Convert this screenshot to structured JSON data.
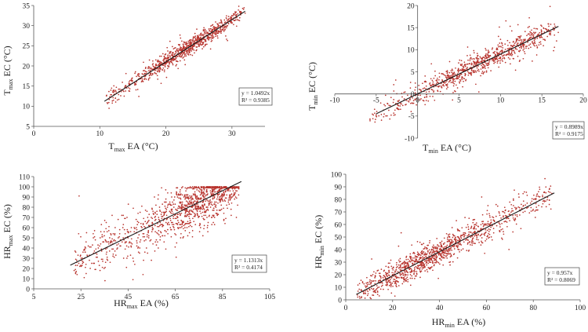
{
  "colors": {
    "point": "#b8342e",
    "line": "#1a1a1a",
    "axis": "#555555",
    "box": "#444444"
  },
  "chart_data": [
    {
      "id": "tmax",
      "type": "scatter",
      "xlabel": {
        "main": "T",
        "sub": "max",
        "rest": " EA (°C)"
      },
      "ylabel": {
        "main": "T",
        "sub": "max",
        "rest": " EC (°C)"
      },
      "xlim": [
        0,
        35
      ],
      "ylim": [
        5,
        35
      ],
      "xticks": [
        "0",
        "10",
        "20",
        "30"
      ],
      "xtick_values": [
        0,
        10,
        20,
        30
      ],
      "yticks": [
        "5",
        "10",
        "15",
        "20",
        "25",
        "30",
        "35"
      ],
      "ytick_values": [
        5,
        10,
        15,
        20,
        25,
        30,
        35
      ],
      "fit": {
        "slope": 1.0492,
        "r2": 0.9385,
        "x_range": [
          10.7,
          32
        ]
      },
      "equation": "y = 1.0492x",
      "r2_text": "R² = 0.9385",
      "cloud": {
        "x_range": [
          11,
          32
        ],
        "x_center": 24,
        "x_spread": 4,
        "noise": 1.0,
        "n": 900,
        "outlier_frac": 0.05
      }
    },
    {
      "id": "tmin",
      "type": "scatter",
      "xlabel": {
        "main": "T",
        "sub": "min",
        "rest": " EA (°C)"
      },
      "ylabel": {
        "main": "T",
        "sub": "min",
        "rest": " EC (°C)"
      },
      "xlim": [
        -10,
        20
      ],
      "ylim": [
        -10,
        20
      ],
      "xticks": [
        "-10",
        "-5",
        "0",
        "5",
        "10",
        "15",
        "20"
      ],
      "xtick_values": [
        -10,
        -5,
        0,
        5,
        10,
        15,
        20
      ],
      "yticks": [
        "-10",
        "-5",
        "0",
        "5",
        "10",
        "15",
        "20"
      ],
      "ytick_values": [
        -10,
        -5,
        0,
        5,
        10,
        15,
        20
      ],
      "fit": {
        "slope": 0.8989,
        "r2": 0.9175,
        "x_range": [
          -5,
          17
        ]
      },
      "equation": "y = 0.8989x",
      "r2_text": "R² = 0.9175",
      "cloud": {
        "x_range": [
          -6,
          17
        ],
        "x_center": 8,
        "x_spread": 4.5,
        "noise": 1.3,
        "n": 900,
        "outlier_frac": 0.06
      }
    },
    {
      "id": "hrmax",
      "type": "scatter",
      "xlabel": {
        "main": "HR",
        "sub": "max",
        "rest": " EA (%)"
      },
      "ylabel": {
        "main": "HR",
        "sub": "max",
        "rest": " EC (%)"
      },
      "xlim": [
        5,
        105
      ],
      "ylim": [
        0,
        110
      ],
      "xticks": [
        "5",
        "25",
        "45",
        "65",
        "85",
        "105"
      ],
      "xtick_values": [
        5,
        25,
        45,
        65,
        85,
        105
      ],
      "yticks": [
        "0",
        "10",
        "20",
        "30",
        "40",
        "50",
        "60",
        "70",
        "80",
        "90",
        "100",
        "110"
      ],
      "ytick_values": [
        0,
        10,
        20,
        30,
        40,
        50,
        60,
        70,
        80,
        90,
        100,
        110
      ],
      "fit": {
        "slope": 1.1313,
        "r2": 0.4174,
        "x_range": [
          20.5,
          93
        ]
      },
      "equation": "y = 1.1313x",
      "r2_text": "R² = 0.4174",
      "cloud": {
        "x_range": [
          22,
          92
        ],
        "x_center": 78,
        "x_spread": 12,
        "noise": 12,
        "n": 1300,
        "outlier_frac": 0.04,
        "cap": 100
      }
    },
    {
      "id": "hrmin",
      "type": "scatter",
      "xlabel": {
        "main": "HR",
        "sub": "min",
        "rest": " EA (%)"
      },
      "ylabel": {
        "main": "HR",
        "sub": "min",
        "rest": " EC (%)"
      },
      "xlim": [
        0,
        100
      ],
      "ylim": [
        0,
        100
      ],
      "xticks": [
        "0",
        "20",
        "40",
        "60",
        "80",
        "100"
      ],
      "xtick_values": [
        0,
        20,
        40,
        60,
        80,
        100
      ],
      "yticks": [
        "0",
        "10",
        "20",
        "30",
        "40",
        "50",
        "60",
        "70",
        "80",
        "90",
        "100"
      ],
      "ytick_values": [
        0,
        10,
        20,
        30,
        40,
        50,
        60,
        70,
        80,
        90,
        100
      ],
      "fit": {
        "slope": 0.957,
        "r2": 0.8069,
        "x_range": [
          4.5,
          89
        ]
      },
      "equation": "y = 0.957x",
      "r2_text": "R² = 0.8069",
      "cloud": {
        "x_range": [
          5,
          88
        ],
        "x_center": 35,
        "x_spread": 15,
        "noise": 5.5,
        "n": 1200,
        "outlier_frac": 0.04
      }
    }
  ]
}
